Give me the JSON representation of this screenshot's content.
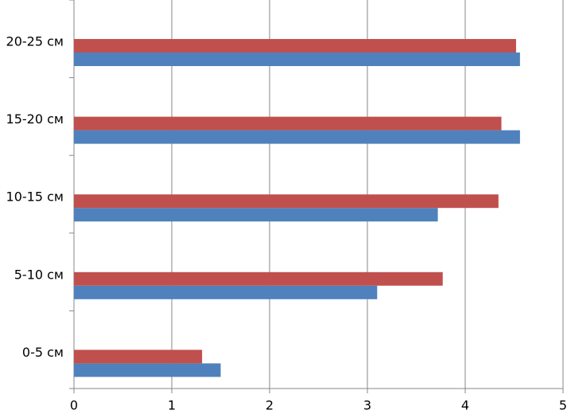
{
  "chart_data": {
    "type": "bar",
    "orientation": "horizontal",
    "categories": [
      "0-5 см",
      "5-10 см",
      "10-15 см",
      "15-20 см",
      "20-25 см"
    ],
    "series": [
      {
        "color": "#4f81bd",
        "values": [
          1.5,
          3.1,
          3.72,
          4.56,
          4.56
        ]
      },
      {
        "color": "#c0504d",
        "values": [
          1.31,
          3.77,
          4.34,
          4.37,
          4.52
        ]
      }
    ],
    "xlim": [
      0,
      5
    ],
    "xticks": [
      0,
      1,
      2,
      3,
      4,
      5
    ],
    "grid": true
  }
}
